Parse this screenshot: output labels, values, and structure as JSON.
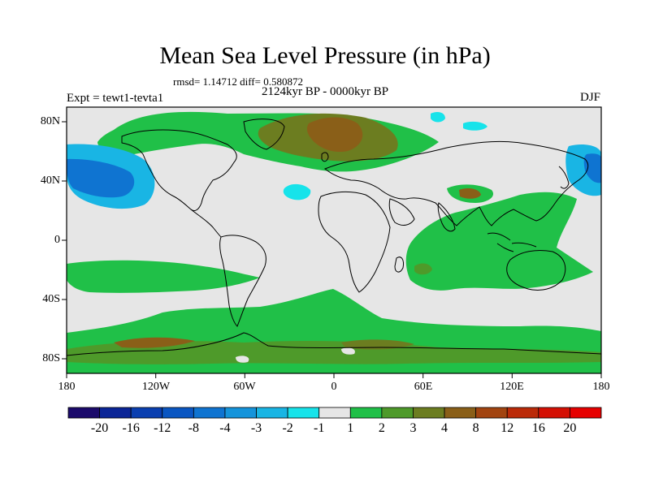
{
  "title": "Mean Sea Level Pressure (in hPa)",
  "stats": "rmsd= 1.14712 diff= 0.580872",
  "period": "2124kyr BP - 0000kyr BP",
  "experiment": "Expt = tewt1-tevta1",
  "season": "DJF",
  "axes": {
    "x_ticks": [
      "180",
      "120W",
      "60W",
      "0",
      "60E",
      "120E",
      "180"
    ],
    "y_ticks": [
      "80N",
      "40N",
      "0",
      "40S",
      "80S"
    ]
  },
  "colorbar": {
    "labels": [
      "-20",
      "-16",
      "-12",
      "-8",
      "-4",
      "-3",
      "-2",
      "-1",
      "1",
      "2",
      "3",
      "4",
      "8",
      "12",
      "16",
      "20"
    ],
    "colors": [
      "#1b0a6b",
      "#0b2597",
      "#0a3fb0",
      "#0a56c2",
      "#0f74d1",
      "#1594db",
      "#19b5e4",
      "#17e3ea",
      "#e6e6e6",
      "#20c048",
      "#4e9a2a",
      "#6c7d20",
      "#8a5f18",
      "#a24410",
      "#bb2a08",
      "#d41004",
      "#e60000"
    ]
  }
}
